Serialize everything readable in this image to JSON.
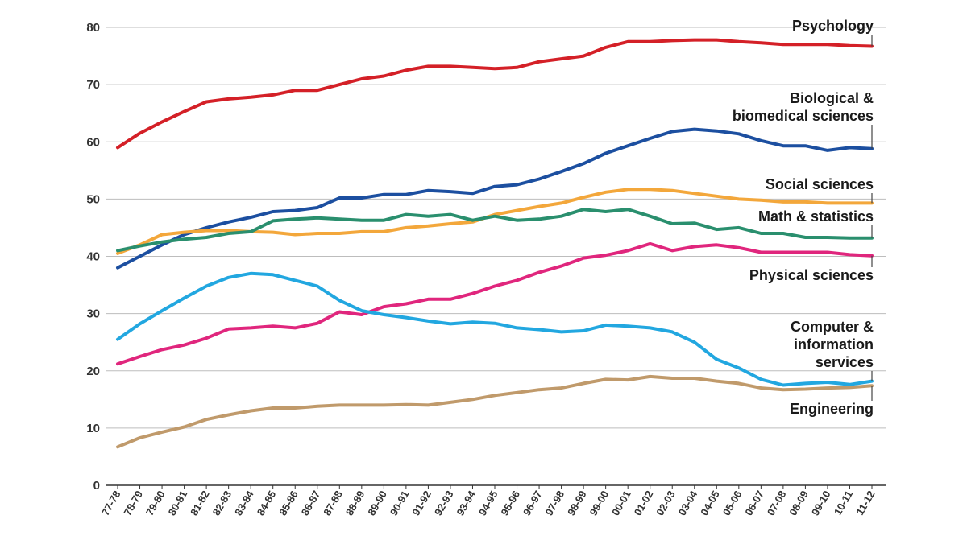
{
  "chart_data": {
    "type": "line",
    "title": "",
    "xlabel": "",
    "ylabel": "",
    "ylim": [
      0,
      80
    ],
    "yticks": [
      0,
      10,
      20,
      30,
      40,
      50,
      60,
      70,
      80
    ],
    "grid": true,
    "categories": [
      "77-78",
      "78-79",
      "79-80",
      "80-81",
      "81-82",
      "82-83",
      "83-84",
      "84-85",
      "85-86",
      "86-87",
      "87-88",
      "88-89",
      "89-90",
      "90-91",
      "91-92",
      "92-93",
      "93-94",
      "94-95",
      "95-96",
      "96-97",
      "97-98",
      "98-99",
      "99-00",
      "00-01",
      "01-02",
      "02-03",
      "03-04",
      "04-05",
      "05-06",
      "06-07",
      "07-08",
      "08-09",
      "99-10",
      "10-11",
      "11-12"
    ],
    "series": [
      {
        "name": "Psychology",
        "color": "#d42027",
        "label_lines": [
          "Psychology"
        ],
        "values": [
          59,
          61.5,
          63.5,
          65.3,
          67,
          67.5,
          67.8,
          68.2,
          69,
          69,
          70,
          71,
          71.5,
          72.5,
          73.2,
          73.2,
          73,
          72.8,
          73,
          74,
          74.5,
          75,
          76.5,
          77.5,
          77.5,
          77.7,
          77.8,
          77.8,
          77.5,
          77.3,
          77,
          77,
          77,
          76.8,
          76.7
        ]
      },
      {
        "name": "Biological & biomedical sciences",
        "color": "#1c4fa0",
        "label_lines": [
          "Biological &",
          "biomedical sciences"
        ],
        "values": [
          38,
          40,
          42,
          43.8,
          45,
          46,
          46.8,
          47.8,
          48,
          48.5,
          50.2,
          50.2,
          50.8,
          50.8,
          51.5,
          51.3,
          51,
          52.2,
          52.5,
          53.5,
          54.8,
          56.2,
          58,
          59.3,
          60.6,
          61.8,
          62.2,
          61.9,
          61.4,
          60.2,
          59.3,
          59.3,
          58.5,
          59,
          58.8
        ]
      },
      {
        "name": "Social sciences",
        "color": "#f3a73b",
        "label_lines": [
          "Social sciences"
        ],
        "values": [
          40.5,
          42,
          43.8,
          44.2,
          44.5,
          44.5,
          44.3,
          44.2,
          43.8,
          44,
          44,
          44.3,
          44.3,
          45,
          45.3,
          45.7,
          46,
          47.3,
          48,
          48.7,
          49.3,
          50.3,
          51.2,
          51.7,
          51.7,
          51.5,
          51,
          50.5,
          50,
          49.8,
          49.5,
          49.5,
          49.3,
          49.3,
          49.3
        ]
      },
      {
        "name": "Math & statistics",
        "color": "#2a8f6e",
        "label_lines": [
          "Math & statistics"
        ],
        "values": [
          41,
          41.8,
          42.5,
          43,
          43.3,
          44,
          44.3,
          46.2,
          46.5,
          46.7,
          46.5,
          46.3,
          46.3,
          47.3,
          47,
          47.3,
          46.3,
          47,
          46.3,
          46.5,
          47,
          48.2,
          47.8,
          48.2,
          47,
          45.7,
          45.8,
          44.7,
          45,
          44,
          44,
          43.3,
          43.3,
          43.2,
          43.2
        ]
      },
      {
        "name": "Physical sciences",
        "color": "#e0267d",
        "label_lines": [
          "Physical sciences"
        ],
        "values": [
          21.2,
          22.5,
          23.7,
          24.5,
          25.7,
          27.3,
          27.5,
          27.8,
          27.5,
          28.3,
          30.3,
          29.8,
          31.2,
          31.7,
          32.5,
          32.5,
          33.5,
          34.8,
          35.8,
          37.2,
          38.3,
          39.7,
          40.2,
          41,
          42.2,
          41,
          41.7,
          42,
          41.5,
          40.7,
          40.7,
          40.7,
          40.7,
          40.3,
          40.1
        ]
      },
      {
        "name": "Computer & information services",
        "color": "#22a7e0",
        "label_lines": [
          "Computer &",
          "information",
          "services"
        ],
        "values": [
          25.5,
          28.2,
          30.5,
          32.7,
          34.8,
          36.3,
          37,
          36.8,
          35.8,
          34.8,
          32.3,
          30.5,
          29.8,
          29.3,
          28.7,
          28.2,
          28.5,
          28.3,
          27.5,
          27.2,
          26.8,
          27,
          28,
          27.8,
          27.5,
          26.8,
          25,
          22,
          20.5,
          18.5,
          17.5,
          17.8,
          18,
          17.6,
          18.2
        ]
      },
      {
        "name": "Engineering",
        "color": "#c09a6b",
        "label_lines": [
          "Engineering"
        ],
        "values": [
          6.7,
          8.3,
          9.3,
          10.2,
          11.5,
          12.3,
          13,
          13.5,
          13.5,
          13.8,
          14,
          14,
          14,
          14.1,
          14,
          14.5,
          15,
          15.7,
          16.2,
          16.7,
          17,
          17.8,
          18.5,
          18.4,
          19,
          18.7,
          18.7,
          18.2,
          17.8,
          17,
          16.7,
          16.8,
          17,
          17.1,
          17.4
        ]
      }
    ]
  }
}
